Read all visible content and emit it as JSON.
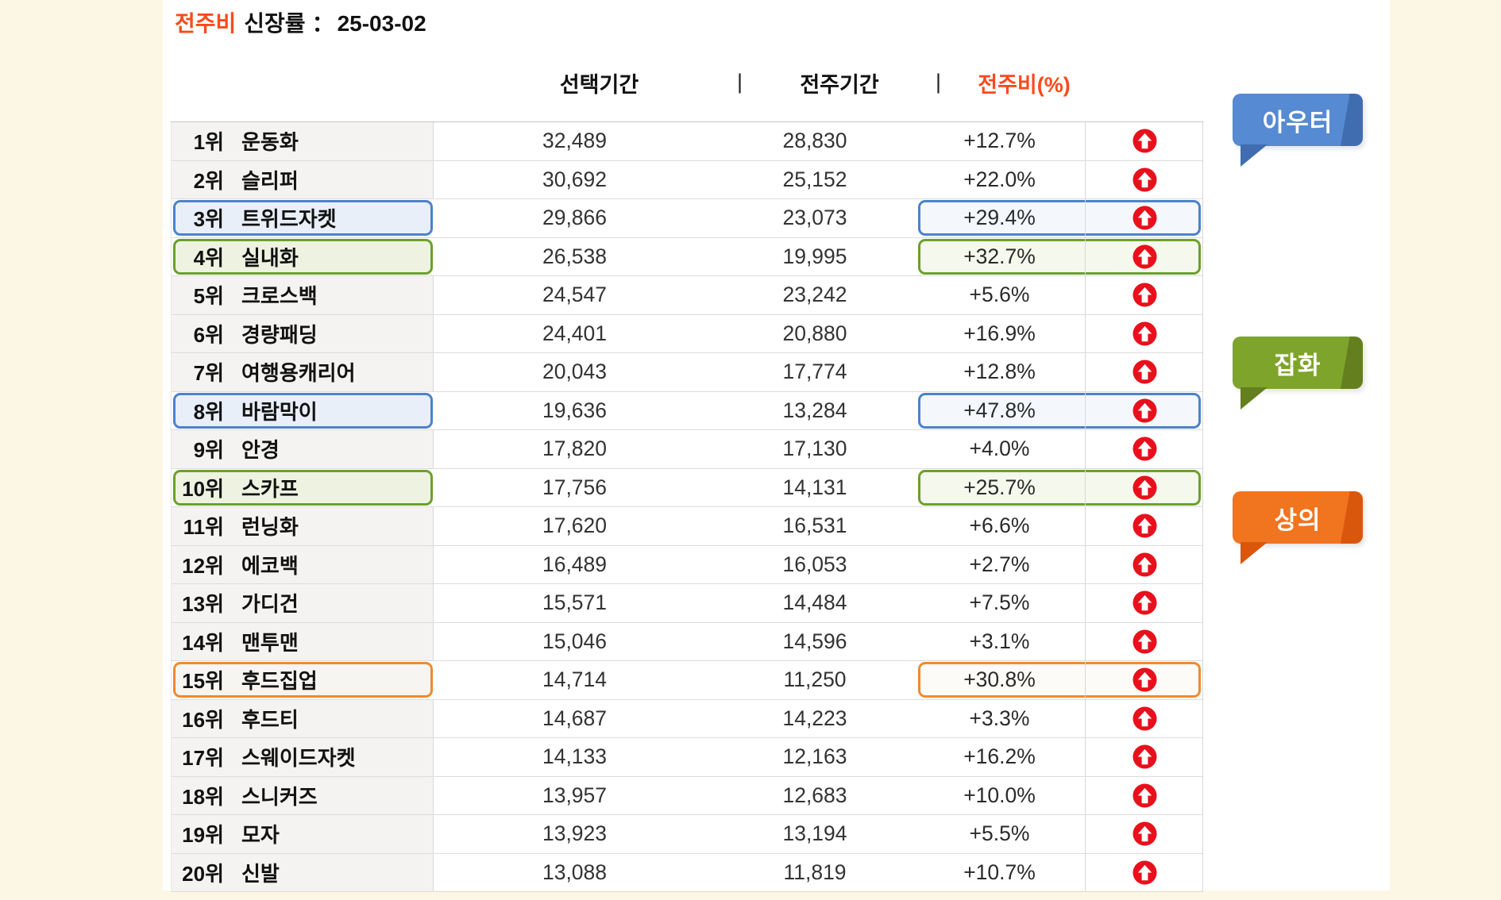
{
  "title": {
    "accent": "전주비",
    "text": "신장률",
    "sep": "：",
    "date": "25-03-02"
  },
  "colors": {
    "accent_orange": "#fb4a1c",
    "arrow_red": "#e8101c",
    "highlight_blue": "#4c82ca",
    "highlight_green": "#6ba02c",
    "highlight_orange": "#f08a2e",
    "name_cell_gray": "#f4f3f1",
    "page_background": "#fcf7e5",
    "panel_background": "#ffffff"
  },
  "chart_data": {
    "type": "table",
    "title": "전주비 신장률 ：25-03-02",
    "columns": [
      "선택기간",
      "전주기간",
      "전주비(%)"
    ],
    "column_separator": "|",
    "rows": [
      {
        "rank": "1위",
        "item": "운동화",
        "selected": "32,489",
        "previous": "28,830",
        "change": "+12.7%",
        "trend": "up",
        "highlight": null
      },
      {
        "rank": "2위",
        "item": "슬리퍼",
        "selected": "30,692",
        "previous": "25,152",
        "change": "+22.0%",
        "trend": "up",
        "highlight": null
      },
      {
        "rank": "3위",
        "item": "트위드자켓",
        "selected": "29,866",
        "previous": "23,073",
        "change": "+29.4%",
        "trend": "up",
        "highlight": "blue"
      },
      {
        "rank": "4위",
        "item": "실내화",
        "selected": "26,538",
        "previous": "19,995",
        "change": "+32.7%",
        "trend": "up",
        "highlight": "green"
      },
      {
        "rank": "5위",
        "item": "크로스백",
        "selected": "24,547",
        "previous": "23,242",
        "change": "+5.6%",
        "trend": "up",
        "highlight": null
      },
      {
        "rank": "6위",
        "item": "경량패딩",
        "selected": "24,401",
        "previous": "20,880",
        "change": "+16.9%",
        "trend": "up",
        "highlight": null
      },
      {
        "rank": "7위",
        "item": "여행용캐리어",
        "selected": "20,043",
        "previous": "17,774",
        "change": "+12.8%",
        "trend": "up",
        "highlight": null
      },
      {
        "rank": "8위",
        "item": "바람막이",
        "selected": "19,636",
        "previous": "13,284",
        "change": "+47.8%",
        "trend": "up",
        "highlight": "blue"
      },
      {
        "rank": "9위",
        "item": "안경",
        "selected": "17,820",
        "previous": "17,130",
        "change": "+4.0%",
        "trend": "up",
        "highlight": null
      },
      {
        "rank": "10위",
        "item": "스카프",
        "selected": "17,756",
        "previous": "14,131",
        "change": "+25.7%",
        "trend": "up",
        "highlight": "green"
      },
      {
        "rank": "11위",
        "item": "런닝화",
        "selected": "17,620",
        "previous": "16,531",
        "change": "+6.6%",
        "trend": "up",
        "highlight": null
      },
      {
        "rank": "12위",
        "item": "에코백",
        "selected": "16,489",
        "previous": "16,053",
        "change": "+2.7%",
        "trend": "up",
        "highlight": null
      },
      {
        "rank": "13위",
        "item": "가디건",
        "selected": "15,571",
        "previous": "14,484",
        "change": "+7.5%",
        "trend": "up",
        "highlight": null
      },
      {
        "rank": "14위",
        "item": "맨투맨",
        "selected": "15,046",
        "previous": "14,596",
        "change": "+3.1%",
        "trend": "up",
        "highlight": null
      },
      {
        "rank": "15위",
        "item": "후드집업",
        "selected": "14,714",
        "previous": "11,250",
        "change": "+30.8%",
        "trend": "up",
        "highlight": "orange"
      },
      {
        "rank": "16위",
        "item": "후드티",
        "selected": "14,687",
        "previous": "14,223",
        "change": "+3.3%",
        "trend": "up",
        "highlight": null
      },
      {
        "rank": "17위",
        "item": "스웨이드자켓",
        "selected": "14,133",
        "previous": "12,163",
        "change": "+16.2%",
        "trend": "up",
        "highlight": null
      },
      {
        "rank": "18위",
        "item": "스니커즈",
        "selected": "13,957",
        "previous": "12,683",
        "change": "+10.0%",
        "trend": "up",
        "highlight": null
      },
      {
        "rank": "19위",
        "item": "모자",
        "selected": "13,923",
        "previous": "13,194",
        "change": "+5.5%",
        "trend": "up",
        "highlight": null
      },
      {
        "rank": "20위",
        "item": "신발",
        "selected": "13,088",
        "previous": "11,819",
        "change": "+10.7%",
        "trend": "up",
        "highlight": null
      }
    ],
    "annotations": [
      {
        "label": "아우터",
        "color": "#568ad2",
        "shade": "#3f6db0"
      },
      {
        "label": "잡화",
        "color": "#7ea42c",
        "shade": "#647f1e"
      },
      {
        "label": "상의",
        "color": "#f1741f",
        "shade": "#d9570d"
      }
    ]
  }
}
